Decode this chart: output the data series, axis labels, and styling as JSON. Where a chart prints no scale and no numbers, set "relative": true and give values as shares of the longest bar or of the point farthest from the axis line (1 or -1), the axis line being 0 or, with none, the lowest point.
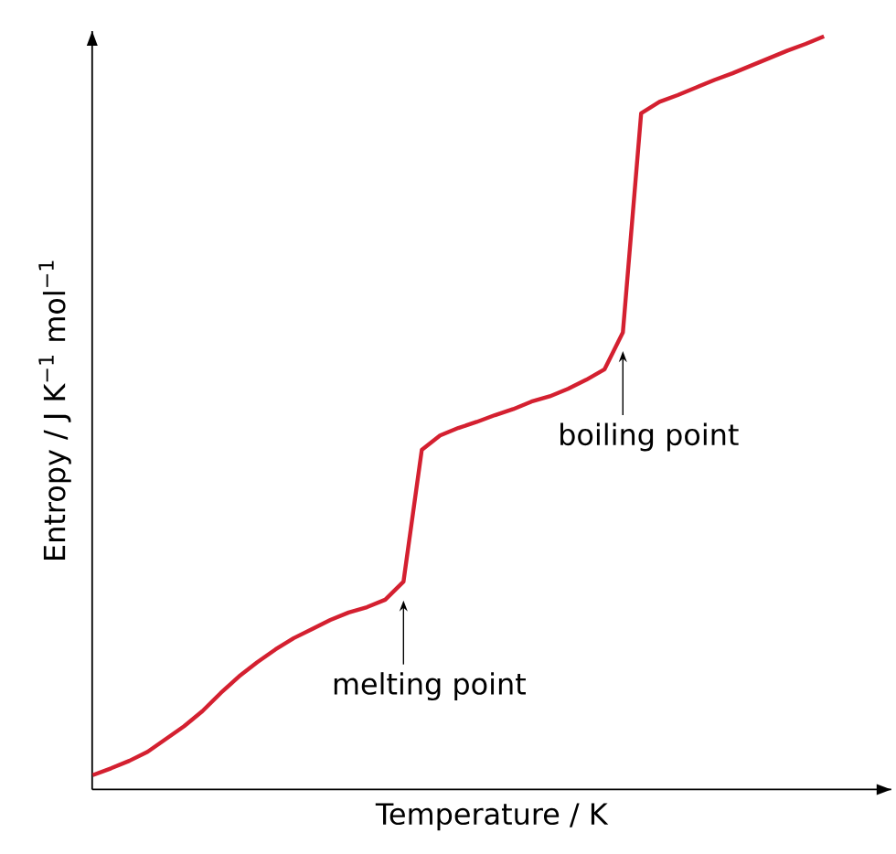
{
  "chart_data": {
    "type": "line",
    "relative": true,
    "xlabel": "Temperature / K",
    "ylabel": "Entropy / J K$^{−1}$ mol$^{−1}$",
    "categories": [
      null,
      null,
      null,
      null,
      null,
      null,
      null,
      null,
      null,
      null,
      null,
      null,
      null,
      null,
      null,
      null,
      null,
      null,
      null,
      null,
      null,
      null,
      null,
      null,
      null,
      null,
      null,
      null,
      null,
      null,
      null,
      null,
      null,
      null,
      null,
      null,
      null,
      null,
      null,
      null,
      null
    ],
    "series": [
      {
        "color": "#d42030",
        "values": [
          0.019,
          0.028,
          0.038,
          0.05,
          0.067,
          0.084,
          0.104,
          0.128,
          0.15,
          0.169,
          0.186,
          0.201,
          0.213,
          0.225,
          0.235,
          0.242,
          0.252,
          0.276,
          0.451,
          0.47,
          0.48,
          0.488,
          0.497,
          0.505,
          0.515,
          0.522,
          0.532,
          0.544,
          0.558,
          0.607,
          0.898,
          0.913,
          0.922,
          0.932,
          0.942,
          0.951,
          0.961,
          0.971,
          0.981,
          0.99,
          1
        ]
      }
    ],
    "annotations": [
      "melting point",
      "boiling point"
    ],
    "marker": "none",
    "line_style": "solid"
  }
}
